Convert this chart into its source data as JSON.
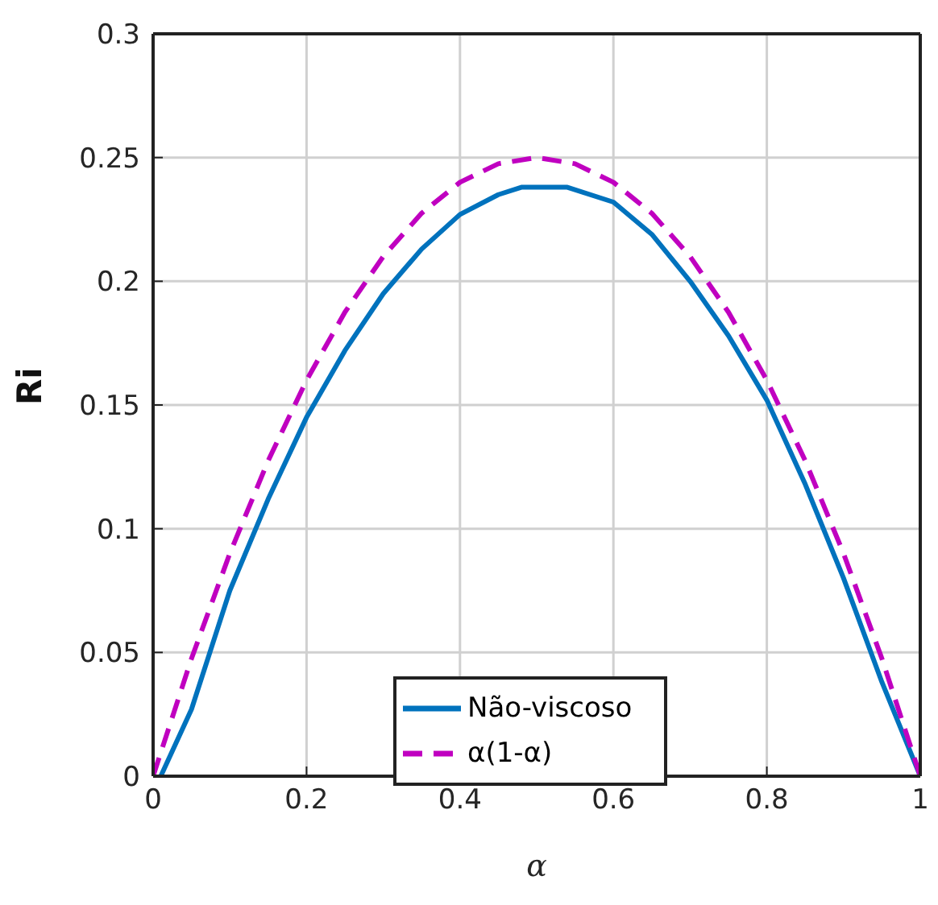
{
  "chart_data": {
    "type": "line",
    "xlabel": "α",
    "ylabel": "Ri",
    "xlim": [
      0,
      1
    ],
    "ylim": [
      0,
      0.3
    ],
    "xticks": [
      0,
      0.2,
      0.4,
      0.6,
      0.8,
      1
    ],
    "yticks": [
      0,
      0.05,
      0.1,
      0.15,
      0.2,
      0.25,
      0.3
    ],
    "grid": true,
    "legend": "bottom",
    "marker": "none",
    "series": [
      {
        "name": "Não-viscoso",
        "color": "#0072bd",
        "line_style": "solid",
        "x": [
          0.01,
          0.05,
          0.1,
          0.15,
          0.2,
          0.25,
          0.3,
          0.35,
          0.4,
          0.45,
          0.48,
          0.54,
          0.6,
          0.65,
          0.7,
          0.75,
          0.8,
          0.85,
          0.9,
          0.95,
          1
        ],
        "values": [
          0,
          0.027,
          0.075,
          0.112,
          0.145,
          0.172,
          0.195,
          0.213,
          0.227,
          0.235,
          0.238,
          0.238,
          0.232,
          0.219,
          0.2,
          0.178,
          0.152,
          0.118,
          0.08,
          0.038,
          0
        ]
      },
      {
        "name": "α(1-α)",
        "color": "#c000c0",
        "line_style": "dashed",
        "x": [
          0,
          0.05,
          0.1,
          0.15,
          0.2,
          0.25,
          0.3,
          0.35,
          0.4,
          0.45,
          0.5,
          0.55,
          0.6,
          0.65,
          0.7,
          0.75,
          0.8,
          0.85,
          0.9,
          0.95,
          1
        ],
        "values": [
          0,
          0.0475,
          0.09,
          0.1275,
          0.16,
          0.1875,
          0.21,
          0.2275,
          0.24,
          0.2475,
          0.25,
          0.2475,
          0.24,
          0.2275,
          0.21,
          0.1875,
          0.16,
          0.1275,
          0.09,
          0.0475,
          0
        ]
      }
    ]
  }
}
